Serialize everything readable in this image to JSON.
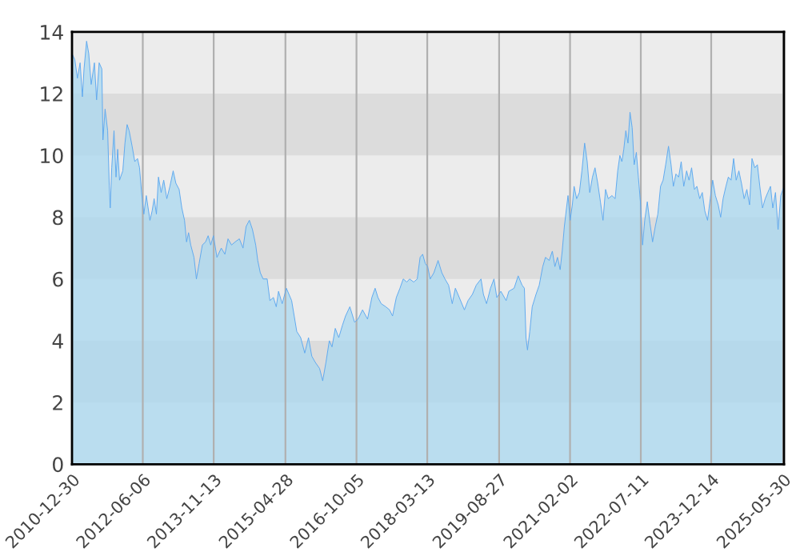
{
  "chart_data": {
    "type": "area",
    "x": [
      "2010-12-30",
      "2011-01-20",
      "2011-02-08",
      "2011-02-28",
      "2011-03-17",
      "2011-03-29",
      "2011-04-17",
      "2011-05-03",
      "2011-05-21",
      "2011-06-14",
      "2011-06-30",
      "2011-07-19",
      "2011-08-08",
      "2011-08-16",
      "2011-09-01",
      "2011-09-20",
      "2011-10-02",
      "2011-10-09",
      "2011-10-20",
      "2011-11-06",
      "2011-11-21",
      "2011-12-03",
      "2011-12-17",
      "2012-01-10",
      "2012-01-26",
      "2012-02-11",
      "2012-02-26",
      "2012-03-19",
      "2012-04-08",
      "2012-04-28",
      "2012-05-13",
      "2012-05-28",
      "2012-06-14",
      "2012-07-02",
      "2012-07-29",
      "2012-08-14",
      "2012-08-29",
      "2012-09-15",
      "2012-09-30",
      "2012-10-20",
      "2012-11-08",
      "2012-12-01",
      "2012-12-24",
      "2013-01-17",
      "2013-02-06",
      "2013-03-02",
      "2013-03-22",
      "2013-04-11",
      "2013-04-26",
      "2013-05-11",
      "2013-05-27",
      "2013-06-20",
      "2013-07-08",
      "2013-07-28",
      "2013-08-21",
      "2013-09-14",
      "2013-10-03",
      "2013-10-22",
      "2013-11-11",
      "2013-12-07",
      "2014-01-08",
      "2014-02-04",
      "2014-02-27",
      "2014-03-25",
      "2014-04-21",
      "2014-05-22",
      "2014-06-18",
      "2014-07-11",
      "2014-08-04",
      "2014-08-27",
      "2014-09-20",
      "2014-10-05",
      "2014-10-24",
      "2014-11-14",
      "2014-12-14",
      "2015-01-03",
      "2015-01-29",
      "2015-02-19",
      "2015-03-08",
      "2015-04-04",
      "2015-05-05",
      "2015-06-13",
      "2015-07-21",
      "2015-08-19",
      "2015-09-18",
      "2015-10-16",
      "2015-11-09",
      "2015-12-05",
      "2016-01-06",
      "2016-01-29",
      "2016-02-22",
      "2016-03-18",
      "2016-04-07",
      "2016-05-01",
      "2016-05-27",
      "2016-06-23",
      "2016-07-16",
      "2016-08-17",
      "2016-09-21",
      "2016-10-17",
      "2016-11-19",
      "2016-12-26",
      "2017-01-27",
      "2017-02-20",
      "2017-03-13",
      "2017-04-06",
      "2017-05-10",
      "2017-06-07",
      "2017-06-29",
      "2017-07-27",
      "2017-08-23",
      "2017-09-16",
      "2017-10-13",
      "2017-11-02",
      "2017-12-03",
      "2017-12-29",
      "2018-01-19",
      "2018-02-07",
      "2018-02-26",
      "2018-03-16",
      "2018-04-04",
      "2018-05-01",
      "2018-06-01",
      "2018-06-29",
      "2018-07-22",
      "2018-08-18",
      "2018-09-14",
      "2018-10-07",
      "2018-11-05",
      "2018-12-13",
      "2019-01-09",
      "2019-02-10",
      "2019-03-11",
      "2019-04-15",
      "2019-05-03",
      "2019-05-26",
      "2019-06-24",
      "2019-07-20",
      "2019-08-10",
      "2019-09-09",
      "2019-10-18",
      "2019-11-07",
      "2019-12-16",
      "2020-01-15",
      "2020-02-13",
      "2020-03-01",
      "2020-03-13",
      "2020-03-24",
      "2020-04-10",
      "2020-04-28",
      "2020-05-26",
      "2020-06-19",
      "2020-07-15",
      "2020-08-04",
      "2020-09-01",
      "2020-09-24",
      "2020-10-13",
      "2020-11-01",
      "2020-11-21",
      "2020-12-06",
      "2020-12-22",
      "2021-01-07",
      "2021-01-18",
      "2021-02-03",
      "2021-02-19",
      "2021-03-04",
      "2021-03-23",
      "2021-04-12",
      "2021-05-01",
      "2021-05-21",
      "2021-06-09",
      "2021-06-28",
      "2021-07-18",
      "2021-08-06",
      "2021-08-26",
      "2021-09-15",
      "2021-10-04",
      "2021-10-23",
      "2021-11-12",
      "2021-12-09",
      "2022-01-02",
      "2022-01-21",
      "2022-02-06",
      "2022-02-21",
      "2022-03-07",
      "2022-03-22",
      "2022-04-07",
      "2022-04-22",
      "2022-05-08",
      "2022-05-23",
      "2022-06-08",
      "2022-06-23",
      "2022-07-08",
      "2022-07-24",
      "2022-08-09",
      "2022-08-28",
      "2022-09-17",
      "2022-10-06",
      "2022-10-26",
      "2022-11-14",
      "2022-12-04",
      "2022-12-23",
      "2023-01-11",
      "2023-02-01",
      "2023-02-20",
      "2023-03-09",
      "2023-03-28",
      "2023-04-17",
      "2023-05-06",
      "2023-05-25",
      "2023-06-15",
      "2023-07-03",
      "2023-07-22",
      "2023-08-12",
      "2023-08-30",
      "2023-09-20",
      "2023-10-09",
      "2023-10-28",
      "2023-11-17",
      "2023-12-07",
      "2023-12-25",
      "2024-01-14",
      "2024-02-04",
      "2024-02-22",
      "2024-03-11",
      "2024-04-01",
      "2024-04-19",
      "2024-05-09",
      "2024-05-28",
      "2024-06-16",
      "2024-07-06",
      "2024-07-25",
      "2024-08-14",
      "2024-09-03",
      "2024-09-23",
      "2024-10-11",
      "2024-11-01",
      "2024-11-20",
      "2024-12-08",
      "2024-12-28",
      "2025-01-17",
      "2025-02-05",
      "2025-02-25",
      "2025-03-14",
      "2025-04-03",
      "2025-04-22",
      "2025-05-12",
      "2025-06-05"
    ],
    "series": [
      {
        "color": "#5ea8ee",
        "values": [
          13.3,
          13.1,
          12.5,
          13.0,
          11.9,
          12.8,
          13.7,
          13.3,
          12.3,
          13.0,
          11.8,
          13.0,
          12.8,
          10.5,
          11.5,
          10.8,
          9.0,
          8.3,
          9.6,
          10.8,
          9.3,
          10.2,
          9.2,
          9.5,
          10.4,
          11.0,
          10.8,
          10.3,
          9.8,
          9.9,
          9.6,
          8.8,
          8.1,
          8.7,
          7.9,
          8.2,
          8.6,
          8.1,
          9.3,
          8.8,
          9.2,
          8.6,
          9.0,
          9.5,
          9.1,
          8.9,
          8.3,
          7.9,
          7.2,
          7.5,
          7.1,
          6.7,
          6.0,
          6.5,
          7.1,
          7.2,
          7.4,
          7.1,
          7.4,
          6.7,
          7.0,
          6.8,
          7.3,
          7.1,
          7.2,
          7.3,
          7.0,
          7.7,
          7.9,
          7.6,
          7.1,
          6.6,
          6.2,
          6.0,
          6.0,
          5.3,
          5.4,
          5.1,
          5.6,
          5.2,
          5.7,
          5.3,
          4.3,
          4.1,
          3.6,
          4.1,
          3.5,
          3.3,
          3.1,
          2.7,
          3.3,
          4.0,
          3.8,
          4.4,
          4.1,
          4.5,
          4.8,
          5.1,
          4.6,
          4.7,
          5.0,
          4.7,
          5.4,
          5.7,
          5.4,
          5.2,
          5.1,
          5.0,
          4.8,
          5.4,
          5.7,
          6.0,
          5.9,
          6.0,
          5.9,
          6.0,
          6.7,
          6.8,
          6.5,
          6.4,
          6.0,
          6.2,
          6.6,
          6.2,
          6.0,
          5.8,
          5.2,
          5.7,
          5.4,
          5.0,
          5.3,
          5.5,
          5.8,
          6.0,
          5.5,
          5.2,
          5.7,
          6.0,
          5.4,
          5.6,
          5.3,
          5.6,
          5.7,
          6.1,
          5.8,
          5.7,
          4.1,
          3.7,
          4.3,
          5.1,
          5.5,
          5.8,
          6.4,
          6.7,
          6.6,
          6.9,
          6.4,
          6.7,
          6.3,
          6.9,
          7.7,
          8.3,
          8.7,
          7.9,
          8.4,
          9.0,
          8.6,
          8.8,
          9.5,
          10.4,
          9.8,
          8.8,
          9.3,
          9.6,
          9.1,
          8.5,
          7.9,
          8.9,
          8.6,
          8.7,
          8.6,
          9.5,
          10.0,
          9.8,
          10.2,
          10.8,
          10.4,
          11.4,
          10.9,
          9.7,
          10.1,
          9.3,
          8.5,
          7.1,
          7.9,
          8.5,
          7.8,
          7.2,
          7.7,
          8.1,
          9.0,
          9.2,
          9.7,
          10.3,
          9.7,
          9.0,
          9.4,
          9.3,
          9.8,
          9.0,
          9.5,
          9.2,
          9.6,
          8.9,
          9.0,
          8.6,
          8.8,
          8.2,
          7.9,
          8.6,
          9.2,
          8.7,
          8.4,
          8.0,
          8.6,
          9.0,
          9.3,
          9.2,
          9.9,
          9.2,
          9.5,
          9.1,
          8.6,
          8.9,
          8.4,
          9.9,
          9.6,
          9.7,
          9.0,
          8.3,
          8.6,
          8.8,
          9.0,
          8.3,
          8.8,
          7.6,
          8.7,
          9.0
        ]
      }
    ],
    "xlim": [
      "2010-12-30",
      "2025-06-05"
    ],
    "xticks": [
      "2010-12-30",
      "2012-06-06",
      "2013-11-13",
      "2015-04-28",
      "2016-10-05",
      "2018-03-13",
      "2019-08-27",
      "2021-02-02",
      "2022-07-11",
      "2023-12-14",
      "2025-05-30"
    ],
    "ylim": [
      0,
      14
    ],
    "yticks": [
      0,
      2,
      4,
      6,
      8,
      10,
      12,
      14
    ],
    "bands": [
      {
        "axis": "y",
        "from": 2,
        "to": 4,
        "color": "#dcdcdc"
      },
      {
        "axis": "y",
        "from": 6,
        "to": 8,
        "color": "#dcdcdc"
      },
      {
        "axis": "y",
        "from": 10,
        "to": 12,
        "color": "#dcdcdc"
      }
    ],
    "grid": "x"
  }
}
